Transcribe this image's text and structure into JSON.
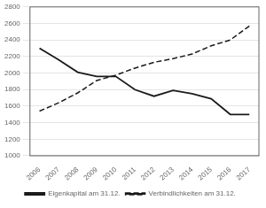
{
  "chart_data": {
    "type": "line",
    "x": [
      2006,
      2007,
      2008,
      2009,
      2010,
      2011,
      2012,
      2013,
      2014,
      2015,
      2016,
      2017
    ],
    "series": [
      {
        "name": "Eigenkapital am 31.12.",
        "color": "#1a1a1a",
        "line_style": "solid",
        "values": [
          2300,
          2160,
          2010,
          1960,
          1960,
          1800,
          1720,
          1790,
          1750,
          1690,
          1500,
          1500
        ]
      },
      {
        "name": "Verbindlichkeiten am 31.12.",
        "color": "#1a1a1a",
        "line_style": "dashed",
        "values": [
          1540,
          1640,
          1760,
          1910,
          1975,
          2060,
          2130,
          2175,
          2230,
          2330,
          2400,
          2570
        ]
      }
    ],
    "xlim": [
      2005.5,
      2017.5
    ],
    "xticks": [
      2006,
      2007,
      2008,
      2009,
      2010,
      2011,
      2012,
      2013,
      2014,
      2015,
      2016,
      2017
    ],
    "ylim": [
      1000,
      2800
    ],
    "yticks": [
      1000,
      1200,
      1400,
      1600,
      1800,
      2000,
      2200,
      2400,
      2600,
      2800
    ],
    "grid": "y",
    "legend": "bottom"
  }
}
